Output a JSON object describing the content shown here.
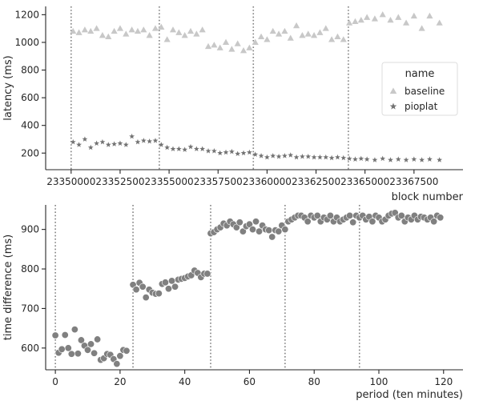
{
  "chart_data": [
    {
      "type": "scatter",
      "xlabel": "block number",
      "ylabel": "latency (ms)",
      "xlim": [
        23348700,
        23370000
      ],
      "ylim": [
        80,
        1260
      ],
      "x_ticks": [
        23350000,
        23352500,
        23355000,
        23357500,
        23360000,
        23362500,
        23365000,
        23367500
      ],
      "x_tick_labels": [
        "23350000",
        "23352500",
        "23355000",
        "23357500",
        "23360000",
        "23362500",
        "23365000",
        "23367500"
      ],
      "y_ticks": [
        200,
        400,
        600,
        800,
        1000,
        1200
      ],
      "y_tick_labels": [
        "200",
        "400",
        "600",
        "800",
        "1000",
        "1200"
      ],
      "vlines": [
        23350000,
        23354500,
        23359300,
        23364150
      ],
      "legend": {
        "title": "name",
        "placement": "center-right"
      },
      "grid": false,
      "series": [
        {
          "name": "baseline",
          "marker": "triangle",
          "color": "#c8c8c8",
          "points": [
            [
              23350100,
              1080
            ],
            [
              23350400,
              1070
            ],
            [
              23350700,
              1090
            ],
            [
              23351000,
              1080
            ],
            [
              23351300,
              1100
            ],
            [
              23351600,
              1050
            ],
            [
              23351900,
              1040
            ],
            [
              23352200,
              1080
            ],
            [
              23352500,
              1100
            ],
            [
              23352800,
              1060
            ],
            [
              23353100,
              1090
            ],
            [
              23353400,
              1080
            ],
            [
              23353700,
              1090
            ],
            [
              23354000,
              1050
            ],
            [
              23354300,
              1100
            ],
            [
              23354600,
              1110
            ],
            [
              23354900,
              1020
            ],
            [
              23355200,
              1090
            ],
            [
              23355500,
              1070
            ],
            [
              23355800,
              1050
            ],
            [
              23356100,
              1080
            ],
            [
              23356400,
              1060
            ],
            [
              23356700,
              1090
            ],
            [
              23357000,
              970
            ],
            [
              23357300,
              980
            ],
            [
              23357600,
              960
            ],
            [
              23357900,
              1000
            ],
            [
              23358200,
              950
            ],
            [
              23358500,
              990
            ],
            [
              23358800,
              940
            ],
            [
              23359100,
              960
            ],
            [
              23359400,
              1000
            ],
            [
              23359700,
              1040
            ],
            [
              23360000,
              1020
            ],
            [
              23360300,
              1080
            ],
            [
              23360600,
              1060
            ],
            [
              23360900,
              1080
            ],
            [
              23361200,
              1030
            ],
            [
              23361500,
              1120
            ],
            [
              23361800,
              1050
            ],
            [
              23362100,
              1060
            ],
            [
              23362400,
              1050
            ],
            [
              23362700,
              1070
            ],
            [
              23363000,
              1100
            ],
            [
              23363300,
              1020
            ],
            [
              23363600,
              1040
            ],
            [
              23363900,
              1020
            ],
            [
              23364200,
              1140
            ],
            [
              23364500,
              1150
            ],
            [
              23364800,
              1160
            ],
            [
              23365100,
              1180
            ],
            [
              23365500,
              1170
            ],
            [
              23365900,
              1200
            ],
            [
              23366300,
              1160
            ],
            [
              23366700,
              1180
            ],
            [
              23367100,
              1140
            ],
            [
              23367500,
              1190
            ],
            [
              23367900,
              1100
            ],
            [
              23368300,
              1190
            ],
            [
              23368800,
              1140
            ]
          ]
        },
        {
          "name": "pioplat",
          "marker": "star",
          "color": "#737373",
          "points": [
            [
              23350100,
              280
            ],
            [
              23350400,
              260
            ],
            [
              23350700,
              300
            ],
            [
              23351000,
              240
            ],
            [
              23351300,
              270
            ],
            [
              23351600,
              280
            ],
            [
              23351900,
              260
            ],
            [
              23352200,
              265
            ],
            [
              23352500,
              270
            ],
            [
              23352800,
              260
            ],
            [
              23353100,
              320
            ],
            [
              23353400,
              280
            ],
            [
              23353700,
              290
            ],
            [
              23354000,
              285
            ],
            [
              23354300,
              290
            ],
            [
              23354600,
              260
            ],
            [
              23354900,
              240
            ],
            [
              23355200,
              230
            ],
            [
              23355500,
              230
            ],
            [
              23355800,
              225
            ],
            [
              23356100,
              245
            ],
            [
              23356400,
              230
            ],
            [
              23356700,
              230
            ],
            [
              23357000,
              215
            ],
            [
              23357300,
              215
            ],
            [
              23357600,
              200
            ],
            [
              23357900,
              205
            ],
            [
              23358200,
              210
            ],
            [
              23358500,
              195
            ],
            [
              23358800,
              200
            ],
            [
              23359100,
              205
            ],
            [
              23359400,
              190
            ],
            [
              23359700,
              180
            ],
            [
              23360000,
              170
            ],
            [
              23360300,
              180
            ],
            [
              23360600,
              175
            ],
            [
              23360900,
              180
            ],
            [
              23361200,
              185
            ],
            [
              23361500,
              170
            ],
            [
              23361800,
              175
            ],
            [
              23362100,
              175
            ],
            [
              23362400,
              170
            ],
            [
              23362700,
              170
            ],
            [
              23363000,
              170
            ],
            [
              23363300,
              165
            ],
            [
              23363600,
              170
            ],
            [
              23363900,
              165
            ],
            [
              23364200,
              160
            ],
            [
              23364500,
              155
            ],
            [
              23364800,
              160
            ],
            [
              23365100,
              155
            ],
            [
              23365500,
              150
            ],
            [
              23365900,
              160
            ],
            [
              23366300,
              150
            ],
            [
              23366700,
              155
            ],
            [
              23367100,
              150
            ],
            [
              23367500,
              155
            ],
            [
              23367900,
              150
            ],
            [
              23368300,
              155
            ],
            [
              23368800,
              150
            ]
          ]
        }
      ]
    },
    {
      "type": "scatter",
      "xlabel": "period (ten minutes)",
      "ylabel": "time difference (ms)",
      "xlim": [
        -3,
        126
      ],
      "ylim": [
        545,
        962
      ],
      "x_ticks": [
        0,
        20,
        40,
        60,
        80,
        100,
        120
      ],
      "x_tick_labels": [
        "0",
        "20",
        "40",
        "60",
        "80",
        "100",
        "120"
      ],
      "y_ticks": [
        600,
        700,
        800,
        900
      ],
      "y_tick_labels": [
        "600",
        "700",
        "800",
        "900"
      ],
      "vlines": [
        0,
        24,
        48,
        71,
        94
      ],
      "grid": false,
      "series": [
        {
          "marker": "circle",
          "color": "#808080",
          "points": [
            [
              0,
              632
            ],
            [
              1,
              588
            ],
            [
              2,
              597
            ],
            [
              3,
              633
            ],
            [
              4,
              600
            ],
            [
              5,
              585
            ],
            [
              6,
              647
            ],
            [
              7,
              586
            ],
            [
              8,
              620
            ],
            [
              9,
              606
            ],
            [
              10,
              595
            ],
            [
              11,
              610
            ],
            [
              12,
              587
            ],
            [
              13,
              622
            ],
            [
              14,
              570
            ],
            [
              15,
              574
            ],
            [
              16,
              585
            ],
            [
              17,
              583
            ],
            [
              18,
              572
            ],
            [
              19,
              560
            ],
            [
              20,
              580
            ],
            [
              21,
              595
            ],
            [
              22,
              593
            ],
            [
              24,
              760
            ],
            [
              25,
              748
            ],
            [
              26,
              765
            ],
            [
              27,
              755
            ],
            [
              28,
              728
            ],
            [
              29,
              748
            ],
            [
              30,
              740
            ],
            [
              31,
              737
            ],
            [
              32,
              738
            ],
            [
              33,
              762
            ],
            [
              34,
              766
            ],
            [
              35,
              750
            ],
            [
              36,
              770
            ],
            [
              37,
              755
            ],
            [
              38,
              773
            ],
            [
              39,
              775
            ],
            [
              40,
              777
            ],
            [
              41,
              781
            ],
            [
              42,
              784
            ],
            [
              43,
              796
            ],
            [
              44,
              790
            ],
            [
              45,
              779
            ],
            [
              46,
              788
            ],
            [
              47,
              788
            ],
            [
              48,
              890
            ],
            [
              49,
              893
            ],
            [
              50,
              900
            ],
            [
              51,
              905
            ],
            [
              52,
              915
            ],
            [
              53,
              910
            ],
            [
              54,
              920
            ],
            [
              55,
              913
            ],
            [
              56,
              905
            ],
            [
              57,
              918
            ],
            [
              58,
              895
            ],
            [
              59,
              908
            ],
            [
              60,
              913
            ],
            [
              61,
              900
            ],
            [
              62,
              920
            ],
            [
              63,
              895
            ],
            [
              64,
              910
            ],
            [
              65,
              900
            ],
            [
              66,
              898
            ],
            [
              67,
              881
            ],
            [
              68,
              898
            ],
            [
              69,
              895
            ],
            [
              70,
              910
            ],
            [
              71,
              900
            ],
            [
              72,
              920
            ],
            [
              73,
              925
            ],
            [
              74,
              930
            ],
            [
              75,
              935
            ],
            [
              76,
              935
            ],
            [
              77,
              930
            ],
            [
              78,
              920
            ],
            [
              79,
              935
            ],
            [
              80,
              930
            ],
            [
              81,
              935
            ],
            [
              82,
              920
            ],
            [
              83,
              930
            ],
            [
              84,
              925
            ],
            [
              85,
              935
            ],
            [
              86,
              920
            ],
            [
              87,
              930
            ],
            [
              88,
              920
            ],
            [
              89,
              925
            ],
            [
              90,
              930
            ],
            [
              91,
              935
            ],
            [
              92,
              918
            ],
            [
              93,
              935
            ],
            [
              94,
              930
            ],
            [
              95,
              935
            ],
            [
              96,
              925
            ],
            [
              97,
              932
            ],
            [
              98,
              920
            ],
            [
              99,
              935
            ],
            [
              100,
              930
            ],
            [
              101,
              920
            ],
            [
              102,
              925
            ],
            [
              103,
              935
            ],
            [
              104,
              940
            ],
            [
              105,
              942
            ],
            [
              106,
              930
            ],
            [
              107,
              935
            ],
            [
              108,
              920
            ],
            [
              109,
              930
            ],
            [
              110,
              925
            ],
            [
              111,
              935
            ],
            [
              112,
              925
            ],
            [
              113,
              932
            ],
            [
              114,
              930
            ],
            [
              115,
              925
            ],
            [
              116,
              930
            ],
            [
              117,
              920
            ],
            [
              118,
              935
            ],
            [
              119,
              930
            ]
          ]
        }
      ]
    }
  ]
}
